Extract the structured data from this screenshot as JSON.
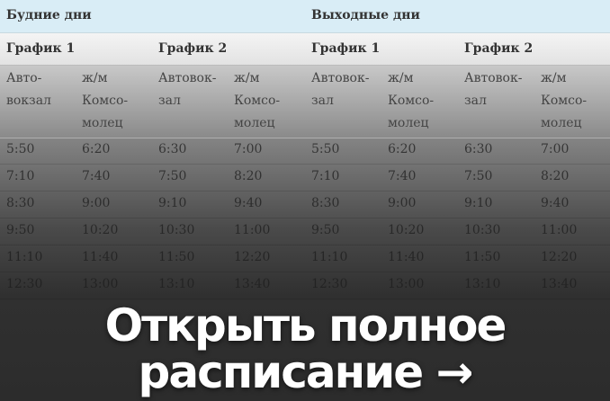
{
  "header": {
    "weekdays": "Будние дни",
    "weekends": "Выходные дни"
  },
  "graphs": [
    "График 1",
    "График 2",
    "График 1",
    "График 2"
  ],
  "columns": [
    "Авто-\nвокзал",
    "ж/м\nКомсо-\nмолец",
    "Автовок-\nзал",
    "ж/м\nКомсо-\nмолец",
    "Автовок-\nзал",
    "ж/м\nКомсо-\nмолец",
    "Автовок-\nзал",
    "ж/м\nКомсо-\nмолец"
  ],
  "rows": [
    [
      "5:50",
      "6:20",
      "6:30",
      "7:00",
      "5:50",
      "6:20",
      "6:30",
      "7:00"
    ],
    [
      "7:10",
      "7:40",
      "7:50",
      "8:20",
      "7:10",
      "7:40",
      "7:50",
      "8:20"
    ],
    [
      "8:30",
      "9:00",
      "9:10",
      "9:40",
      "8:30",
      "9:00",
      "9:10",
      "9:40"
    ],
    [
      "9:50",
      "10:20",
      "10:30",
      "11:00",
      "9:50",
      "10:20",
      "10:30",
      "11:00"
    ],
    [
      "11:10",
      "11:40",
      "11:50",
      "12:20",
      "11:10",
      "11:40",
      "11:50",
      "12:20"
    ],
    [
      "12:30",
      "13:00",
      "13:10",
      "13:40",
      "12:30",
      "13:00",
      "13:10",
      "13:40"
    ]
  ],
  "cta": {
    "line1": "Открыть полное",
    "line2": "расписание →"
  }
}
